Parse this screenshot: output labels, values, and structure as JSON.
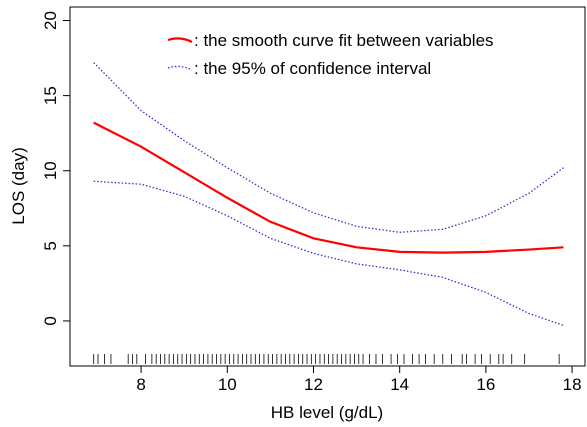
{
  "chart_data": {
    "type": "line",
    "xlabel": "HB level (g/dL)",
    "ylabel": "LOS (day)",
    "x": [
      6.9,
      8,
      9,
      10,
      11,
      12,
      13,
      14,
      15,
      16,
      17,
      17.8
    ],
    "series": [
      {
        "name": ": the smooth curve fit between variables",
        "color": "#ff0000",
        "style": "solid",
        "values": [
          13.2,
          11.6,
          9.9,
          8.2,
          6.6,
          5.5,
          4.9,
          4.6,
          4.55,
          4.6,
          4.75,
          4.9
        ]
      },
      {
        "name": ": the 95% of confidence interval",
        "color": "#3333cc",
        "style": "dotted",
        "upper": [
          17.2,
          14.0,
          12.0,
          10.2,
          8.5,
          7.2,
          6.3,
          5.9,
          6.1,
          7.0,
          8.5,
          10.2
        ],
        "lower": [
          9.3,
          9.1,
          8.3,
          7.0,
          5.5,
          4.5,
          3.8,
          3.4,
          2.9,
          1.9,
          0.5,
          -0.3
        ]
      }
    ],
    "rug": [
      6.9,
      7.0,
      7.15,
      7.3,
      7.7,
      7.8,
      7.9,
      8.1,
      8.25,
      8.35,
      8.45,
      8.55,
      8.65,
      8.75,
      8.85,
      8.95,
      9.05,
      9.15,
      9.25,
      9.35,
      9.45,
      9.55,
      9.65,
      9.75,
      9.85,
      9.95,
      10.05,
      10.15,
      10.25,
      10.35,
      10.45,
      10.55,
      10.65,
      10.75,
      10.85,
      10.95,
      11.05,
      11.15,
      11.25,
      11.35,
      11.45,
      11.55,
      11.65,
      11.75,
      11.85,
      11.95,
      12.05,
      12.15,
      12.25,
      12.35,
      12.45,
      12.55,
      12.65,
      12.75,
      12.85,
      12.95,
      13.05,
      13.15,
      13.3,
      13.45,
      13.6,
      13.8,
      13.95,
      14.1,
      14.3,
      14.45,
      14.6,
      14.8,
      15.0,
      15.2,
      15.45,
      15.55,
      15.75,
      15.9,
      16.1,
      16.3,
      16.4,
      16.6,
      16.9,
      17.7
    ],
    "xlim": [
      6.35,
      18.3
    ],
    "ylim": [
      -3,
      20.9
    ],
    "xticks": [
      8,
      10,
      12,
      14,
      16,
      18
    ],
    "yticks": [
      0,
      5,
      10,
      15,
      20
    ],
    "grid": false
  }
}
